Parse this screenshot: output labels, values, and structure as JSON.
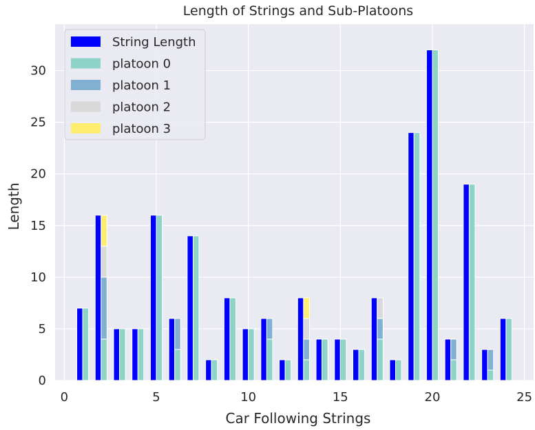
{
  "chart_data": {
    "type": "bar",
    "title": "Length of Strings and Sub-Platoons",
    "xlabel": "Car Following Strings",
    "ylabel": "Length",
    "xlim": [
      -0.5,
      25.5
    ],
    "ylim": [
      0,
      34.5
    ],
    "xticks": [
      0,
      5,
      10,
      15,
      20,
      25
    ],
    "yticks": [
      0,
      5,
      10,
      15,
      20,
      25,
      30
    ],
    "grid": true,
    "legend_position": "top-left",
    "colors": {
      "background": "#EAEAF2",
      "grid": "#FFFFFF",
      "String Length": "#0000FF",
      "platoon 0": "#8DD3C7",
      "platoon 1": "#80B1D3",
      "platoon 2": "#D9D9D9",
      "platoon 3": "#FFED6F"
    },
    "legend": [
      "String Length",
      "platoon 0",
      "platoon 1",
      "platoon 2",
      "platoon 3"
    ],
    "strings": [
      {
        "x": 1,
        "length": 7,
        "platoons": [
          7
        ]
      },
      {
        "x": 2,
        "length": 16,
        "platoons": [
          4,
          6,
          3,
          3
        ]
      },
      {
        "x": 3,
        "length": 5,
        "platoons": [
          5
        ]
      },
      {
        "x": 4,
        "length": 5,
        "platoons": [
          5
        ]
      },
      {
        "x": 5,
        "length": 16,
        "platoons": [
          16
        ]
      },
      {
        "x": 6,
        "length": 6,
        "platoons": [
          3,
          3
        ]
      },
      {
        "x": 7,
        "length": 14,
        "platoons": [
          14
        ]
      },
      {
        "x": 8,
        "length": 2,
        "platoons": [
          2
        ]
      },
      {
        "x": 9,
        "length": 8,
        "platoons": [
          8
        ]
      },
      {
        "x": 10,
        "length": 5,
        "platoons": [
          5
        ]
      },
      {
        "x": 11,
        "length": 6,
        "platoons": [
          4,
          2
        ]
      },
      {
        "x": 12,
        "length": 2,
        "platoons": [
          2
        ]
      },
      {
        "x": 13,
        "length": 8,
        "platoons": [
          2,
          2,
          2,
          2
        ]
      },
      {
        "x": 14,
        "length": 4,
        "platoons": [
          4
        ]
      },
      {
        "x": 15,
        "length": 4,
        "platoons": [
          4
        ]
      },
      {
        "x": 16,
        "length": 3,
        "platoons": [
          3
        ]
      },
      {
        "x": 17,
        "length": 8,
        "platoons": [
          4,
          2,
          2
        ]
      },
      {
        "x": 18,
        "length": 2,
        "platoons": [
          2
        ]
      },
      {
        "x": 19,
        "length": 24,
        "platoons": [
          24
        ]
      },
      {
        "x": 20,
        "length": 32,
        "platoons": [
          32
        ]
      },
      {
        "x": 21,
        "length": 4,
        "platoons": [
          2,
          2
        ]
      },
      {
        "x": 22,
        "length": 19,
        "platoons": [
          19
        ]
      },
      {
        "x": 23,
        "length": 3,
        "platoons": [
          1,
          2
        ]
      },
      {
        "x": 24,
        "length": 6,
        "platoons": [
          6
        ]
      }
    ]
  }
}
